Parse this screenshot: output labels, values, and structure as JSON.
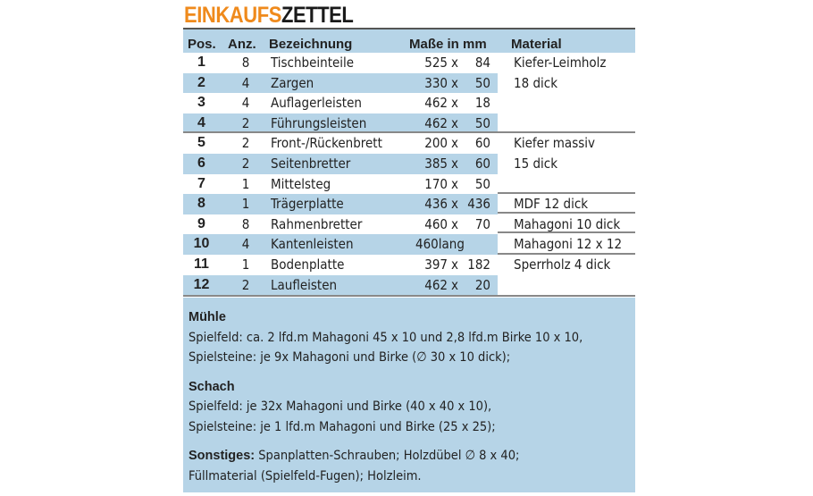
{
  "title": {
    "part1": "EINKAUFS",
    "part2": "ZETTEL"
  },
  "headers": {
    "pos": "Pos.",
    "anz": "Anz.",
    "bez": "Bezeichnung",
    "masse": "Maße in mm",
    "material": "Material"
  },
  "rows": [
    {
      "pos": "1",
      "anz": "8",
      "bez": "Tischbeinteile",
      "m1": "525",
      "x": "x",
      "m2": "84",
      "mat": "Kiefer-Leimholz"
    },
    {
      "pos": "2",
      "anz": "4",
      "bez": "Zargen",
      "m1": "330",
      "x": "x",
      "m2": "50",
      "mat": "18 dick"
    },
    {
      "pos": "3",
      "anz": "4",
      "bez": "Auflagerleisten",
      "m1": "462",
      "x": "x",
      "m2": "18",
      "mat": ""
    },
    {
      "pos": "4",
      "anz": "2",
      "bez": "Führungsleisten",
      "m1": "462",
      "x": "x",
      "m2": "50",
      "mat": ""
    },
    {
      "pos": "5",
      "anz": "2",
      "bez": "Front-/Rückenbrett",
      "m1": "200",
      "x": "x",
      "m2": "60",
      "mat": "Kiefer massiv"
    },
    {
      "pos": "6",
      "anz": "2",
      "bez": "Seitenbretter",
      "m1": "385",
      "x": "x",
      "m2": "60",
      "mat": "15 dick"
    },
    {
      "pos": "7",
      "anz": "1",
      "bez": "Mittelsteg",
      "m1": "170",
      "x": "x",
      "m2": "50",
      "mat": ""
    },
    {
      "pos": "8",
      "anz": "1",
      "bez": "Trägerplatte",
      "m1": "436",
      "x": "x",
      "m2": "436",
      "mat": "MDF 12 dick"
    },
    {
      "pos": "9",
      "anz": "8",
      "bez": "Rahmenbretter",
      "m1": "460",
      "x": "x",
      "m2": "70",
      "mat": "Mahagoni 10 dick"
    },
    {
      "pos": "10",
      "anz": "4",
      "bez": "Kantenleisten",
      "m1": "460lang",
      "x": "",
      "m2": "",
      "mat": "Mahagoni 12 x 12"
    },
    {
      "pos": "11",
      "anz": "1",
      "bez": "Bodenplatte",
      "m1": "397",
      "x": "x",
      "m2": "182",
      "mat": "Sperrholz 4 dick"
    },
    {
      "pos": "12",
      "anz": "2",
      "bez": "Laufleisten",
      "m1": "462",
      "x": "x",
      "m2": "20",
      "mat": ""
    }
  ],
  "notes": {
    "muehle_title": "Mühle",
    "muehle_1": "Spielfeld: ca. 2 lfd.m Mahagoni 45 x 10 und 2,8 lfd.m Birke 10 x 10,",
    "muehle_2": "Spielsteine: je 9x  Mahagoni und Birke (∅ 30 x 10 dick);",
    "schach_title": "Schach",
    "schach_1": "Spielfeld: je 32x  Mahagoni und Birke (40 x 40 x 10),",
    "schach_2": "Spielsteine: je 1 lfd.m Mahagoni und Birke (25 x 25);",
    "sonst_title": "Sonstiges:",
    "sonst_1": " Spanplatten-Schrauben; Holzdübel ∅ 8 x 40;",
    "sonst_2": "Füllmaterial (Spielfeld-Fugen); Holzleim."
  },
  "colors": {
    "accent": "#ef8a1c",
    "band": "#b6d4e7"
  }
}
